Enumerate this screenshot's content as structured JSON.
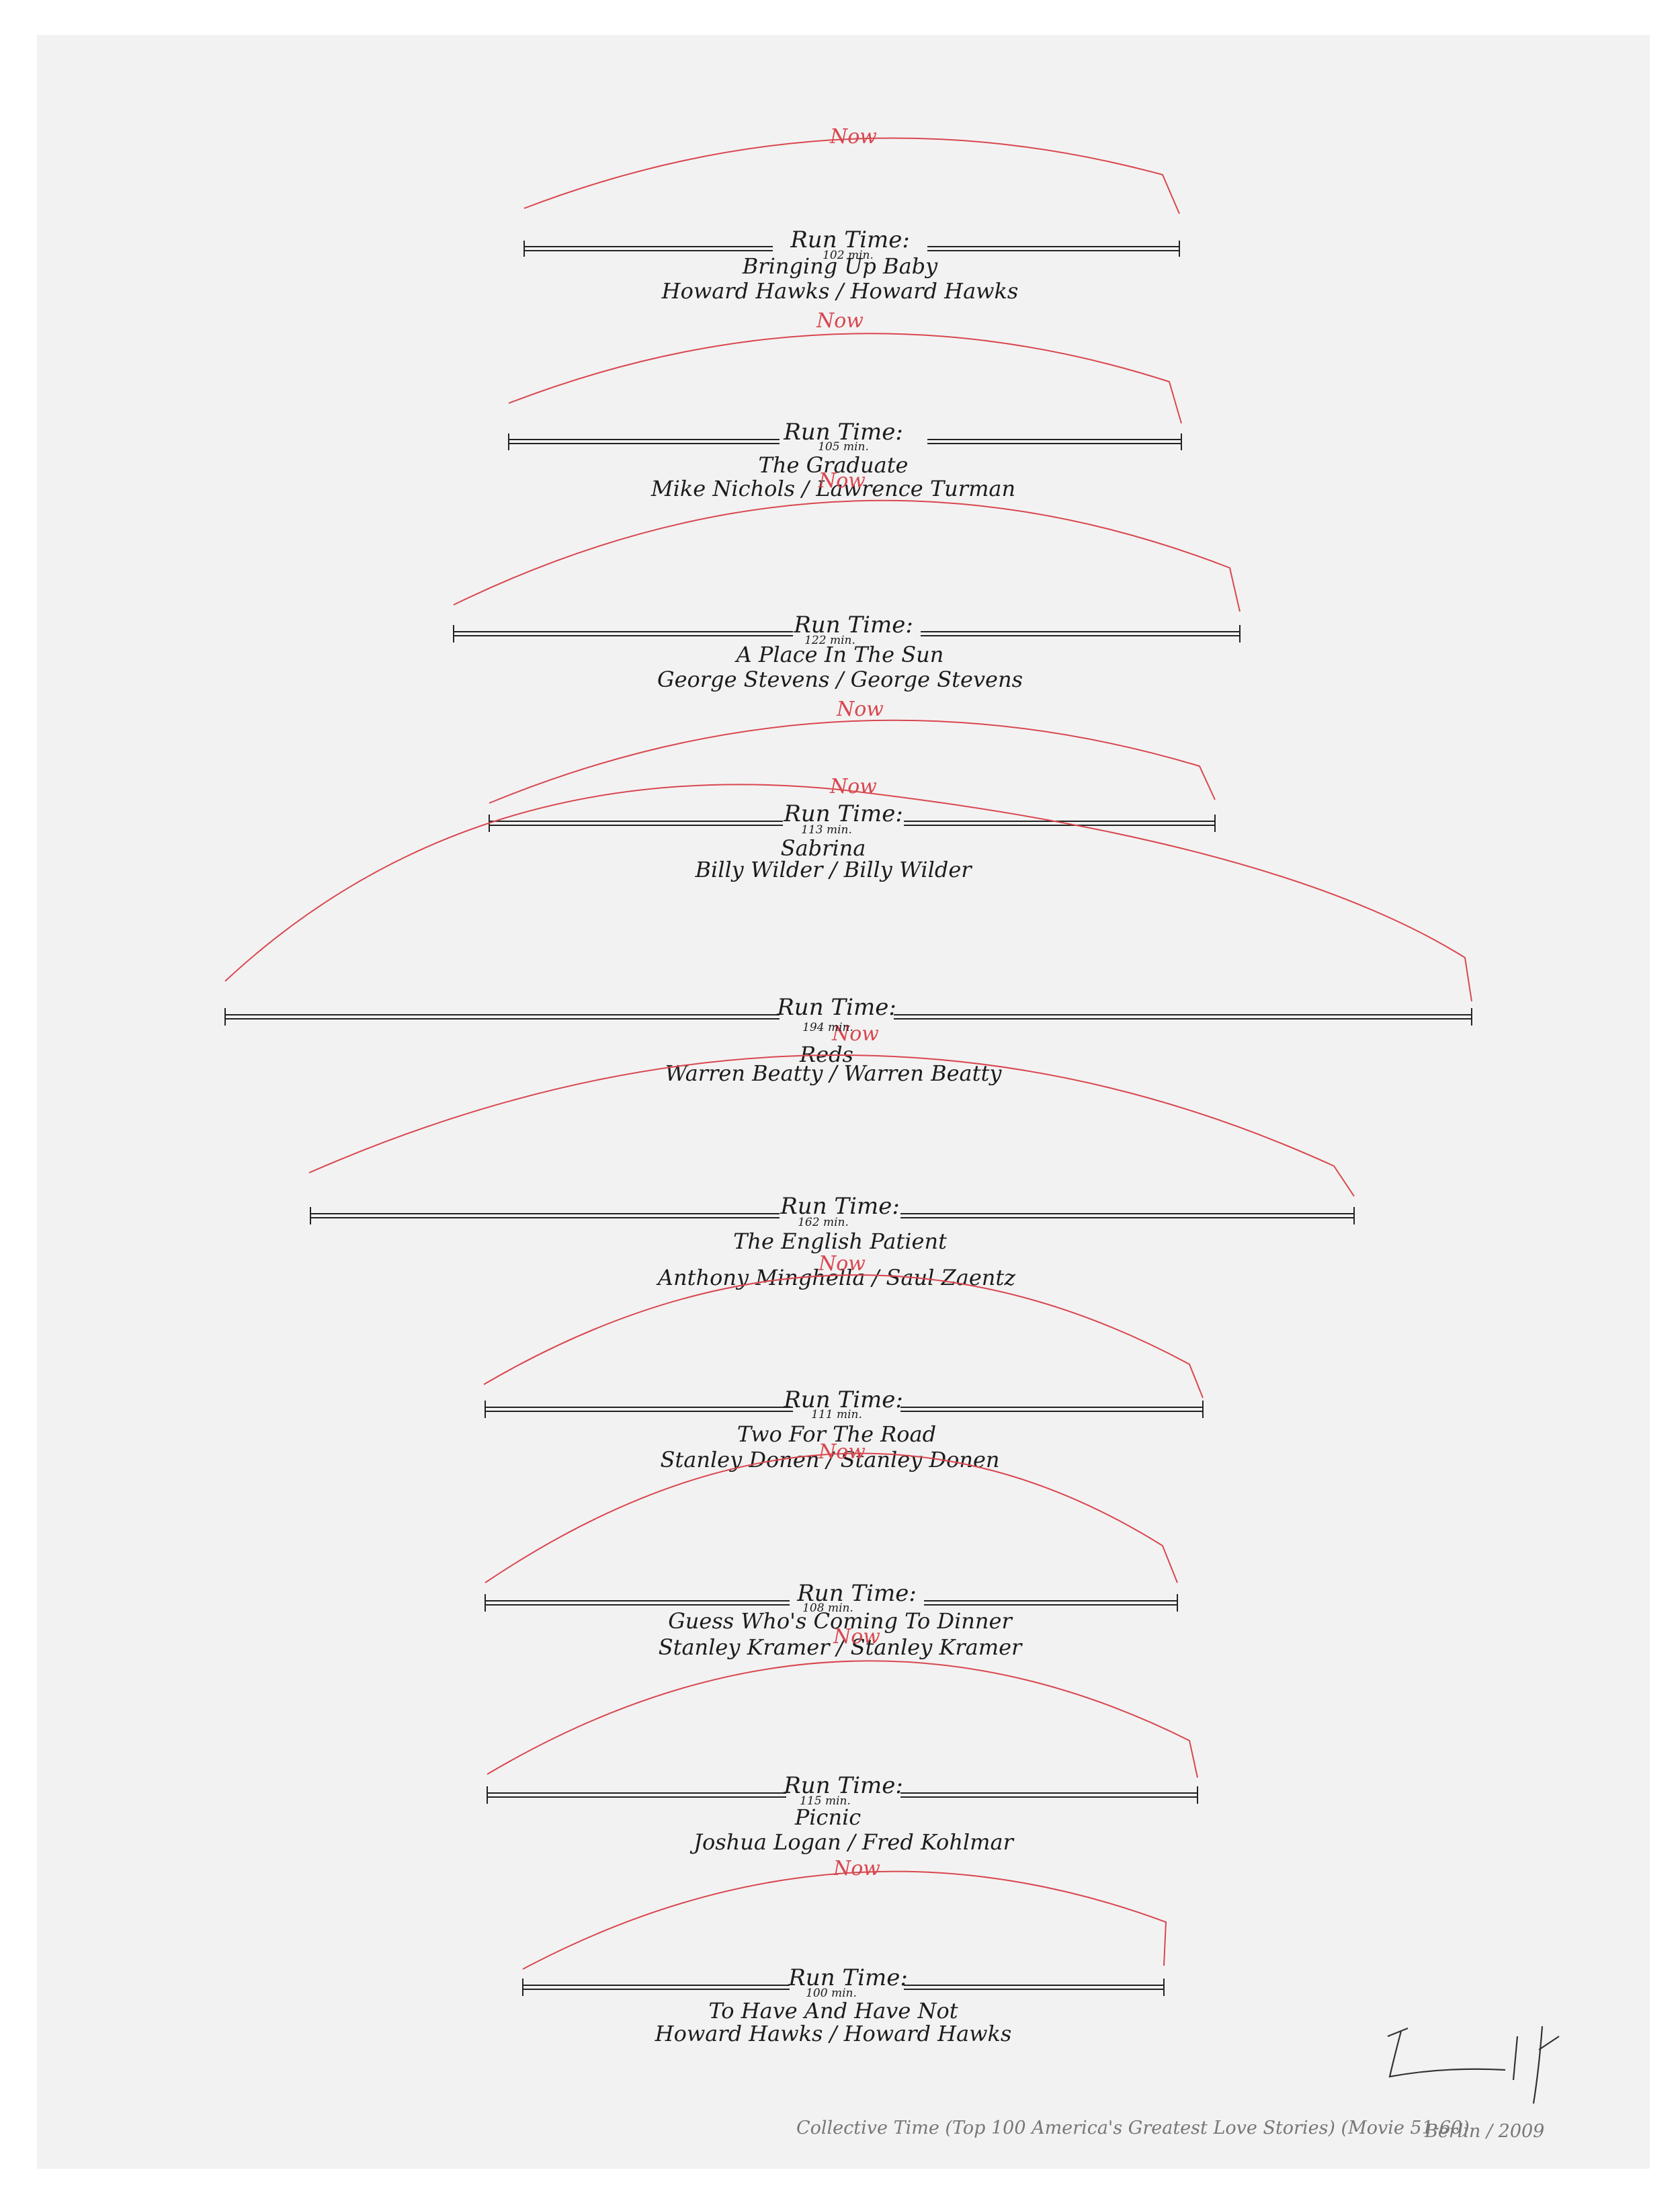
{
  "now_label": "Now",
  "run_time_label": "Run Time:",
  "films": [
    {
      "minutes": "102 min.",
      "title": "Bringing Up Baby",
      "credits": "Howard Hawks / Howard Hawks"
    },
    {
      "minutes": "105 min.",
      "title": "The Graduate",
      "credits": "Mike Nichols / Lawrence Turman"
    },
    {
      "minutes": "122 min.",
      "title": "A Place In The Sun",
      "credits": "George Stevens / George Stevens"
    },
    {
      "minutes": "113 min.",
      "title": "Sabrina",
      "credits": "Billy Wilder / Billy Wilder"
    },
    {
      "minutes": "194 min.",
      "title": "Reds",
      "credits": "Warren Beatty / Warren Beatty"
    },
    {
      "minutes": "162 min.",
      "title": "The English Patient",
      "credits": "Anthony Minghella / Saul Zaentz"
    },
    {
      "minutes": "111 min.",
      "title": "Two For The Road",
      "credits": "Stanley Donen / Stanley Donen"
    },
    {
      "minutes": "108 min.",
      "title": "Guess Who's Coming To Dinner",
      "credits": "Stanley Kramer / Stanley Kramer"
    },
    {
      "minutes": "115 min.",
      "title": "Picnic",
      "credits": "Joshua Logan / Fred Kohlmar"
    },
    {
      "minutes": "100 min.",
      "title": "To Have And Have Not",
      "credits": "Howard Hawks / Howard Hawks"
    }
  ],
  "caption": "Collective Time (Top 100 America's Greatest Love Stories) (Movie 51-60)",
  "signature_date": "Berlin / 2009",
  "colors": {
    "paper": "#f3f2f2",
    "ink": "#1c1c1c",
    "arc": "#d8474f"
  }
}
